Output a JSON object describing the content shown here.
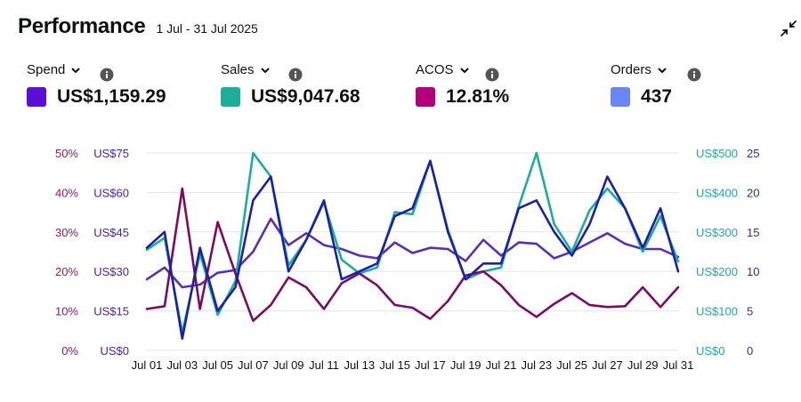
{
  "header": {
    "title": "Performance",
    "date_range": "1 Jul - 31 Jul 2025"
  },
  "metrics": [
    {
      "label": "Spend",
      "value": "US$1,159.29",
      "color": "#5b0fd6"
    },
    {
      "label": "Sales",
      "value": "US$9,047.68",
      "color": "#1aae9b"
    },
    {
      "label": "ACOS",
      "value": "12.81%",
      "color": "#b5007d"
    },
    {
      "label": "Orders",
      "value": "437",
      "color": "#6b85f5"
    }
  ],
  "chart_data": {
    "type": "line",
    "x": [
      "Jul 01",
      "Jul 02",
      "Jul 03",
      "Jul 04",
      "Jul 05",
      "Jul 06",
      "Jul 07",
      "Jul 08",
      "Jul 09",
      "Jul 10",
      "Jul 11",
      "Jul 12",
      "Jul 13",
      "Jul 14",
      "Jul 15",
      "Jul 16",
      "Jul 17",
      "Jul 18",
      "Jul 19",
      "Jul 20",
      "Jul 21",
      "Jul 22",
      "Jul 23",
      "Jul 24",
      "Jul 25",
      "Jul 26",
      "Jul 27",
      "Jul 28",
      "Jul 29",
      "Jul 30",
      "Jul 31"
    ],
    "x_tick_labels": [
      "Jul 01",
      "Jul 03",
      "Jul 05",
      "Jul 07",
      "Jul 09",
      "Jul 11",
      "Jul 13",
      "Jul 15",
      "Jul 17",
      "Jul 19",
      "Jul 21",
      "Jul 23",
      "Jul 25",
      "Jul 27",
      "Jul 29",
      "Jul 31"
    ],
    "axes": {
      "acos": {
        "ticks": [
          "0%",
          "10%",
          "20%",
          "30%",
          "40%",
          "50%"
        ],
        "range": [
          0,
          50
        ],
        "color": "#8b1a6b"
      },
      "spend": {
        "ticks": [
          "US$0",
          "US$15",
          "US$30",
          "US$45",
          "US$60",
          "US$75"
        ],
        "range": [
          0,
          75
        ],
        "color": "#4a1ea5"
      },
      "sales": {
        "ticks": [
          "US$0",
          "US$100",
          "US$200",
          "US$300",
          "US$400",
          "US$500"
        ],
        "range": [
          0,
          500
        ],
        "color": "#1aae9b"
      },
      "orders": {
        "ticks": [
          "0",
          "5",
          "10",
          "15",
          "20",
          "25"
        ],
        "range": [
          0,
          25
        ],
        "color": "#26309c"
      }
    },
    "grid": true,
    "series": [
      {
        "axis": "spend",
        "color": "#5b2fb3",
        "values": [
          27,
          31.5,
          24,
          25,
          29.5,
          30.5,
          37.5,
          50,
          40,
          44.5,
          40,
          38.5,
          36,
          35,
          41,
          37,
          39,
          38.5,
          34,
          42,
          36,
          41,
          40.5,
          35,
          37.5,
          41,
          44.5,
          40.5,
          38.5,
          38.5,
          35.5
        ]
      },
      {
        "axis": "sales",
        "color": "#1aae9b",
        "values": [
          255,
          285,
          45,
          245,
          90,
          175,
          500,
          440,
          215,
          280,
          375,
          230,
          195,
          210,
          350,
          345,
          480,
          305,
          180,
          200,
          210,
          365,
          500,
          320,
          250,
          355,
          410,
          360,
          250,
          340,
          225
        ]
      },
      {
        "axis": "acos",
        "color": "#7b0a6b",
        "values": [
          10.5,
          11.2,
          41,
          10.5,
          32.5,
          19.5,
          7.5,
          11.5,
          18.5,
          16,
          10.5,
          17,
          19.5,
          16.5,
          11.5,
          10.8,
          8,
          12.5,
          19,
          20,
          16.5,
          11.5,
          8.5,
          11.8,
          14.5,
          11.5,
          11,
          11.2,
          16,
          11,
          16
        ]
      },
      {
        "axis": "orders",
        "color": "#1f1fa6",
        "values": [
          13,
          15,
          1.5,
          13,
          5,
          8,
          19,
          22,
          10,
          14,
          19,
          9,
          10,
          11,
          17,
          18,
          24,
          15,
          9,
          11,
          11,
          18,
          19,
          15,
          12,
          16,
          22,
          18,
          13,
          18,
          10
        ]
      }
    ]
  }
}
